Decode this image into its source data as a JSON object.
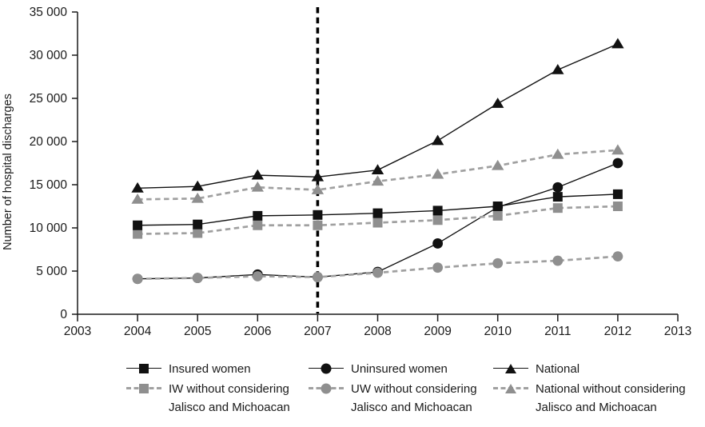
{
  "chart_data": {
    "type": "line",
    "title": "",
    "xlabel": "",
    "ylabel": "Number of hospital discharges",
    "x": [
      2004,
      2005,
      2006,
      2007,
      2008,
      2009,
      2010,
      2011,
      2012
    ],
    "xlim": [
      2003,
      2013
    ],
    "ylim": [
      0,
      35000
    ],
    "x_ticks": [
      2003,
      2004,
      2005,
      2006,
      2007,
      2008,
      2009,
      2010,
      2011,
      2012,
      2013
    ],
    "x_tick_labels": [
      "2003",
      "2004",
      "2005",
      "2006",
      "2007",
      "2008",
      "2009",
      "2010",
      "2011",
      "2012",
      "2013"
    ],
    "y_ticks": [
      0,
      5000,
      10000,
      15000,
      20000,
      25000,
      30000,
      35000
    ],
    "y_tick_labels": [
      "0",
      "5 000",
      "10 000",
      "15 000",
      "20 000",
      "25 000",
      "30 000",
      "35 000"
    ],
    "grid": false,
    "legend_position": "bottom",
    "reference_line": {
      "x": 2007,
      "orientation": "vertical",
      "style": "dashed",
      "color": "#000000"
    },
    "series": [
      {
        "name": "Insured women",
        "marker": "square",
        "line": "solid",
        "color": "#111111",
        "values": [
          10300,
          10400,
          11400,
          11500,
          11700,
          12000,
          12500,
          13600,
          13900
        ]
      },
      {
        "name": "IW without considering Jalisco and Michoacan",
        "marker": "square",
        "line": "dashed",
        "color": "#8f8f8f",
        "line_color": "#a0a0a0",
        "values": [
          9300,
          9400,
          10300,
          10300,
          10600,
          10900,
          11400,
          12300,
          12500
        ]
      },
      {
        "name": "Uninsured women",
        "marker": "circle",
        "line": "solid",
        "color": "#111111",
        "values": [
          4100,
          4200,
          4600,
          4300,
          4900,
          8200,
          12400,
          14700,
          17500
        ]
      },
      {
        "name": "UW without considering Jalisco and Michoacan",
        "marker": "circle",
        "line": "dashed",
        "color": "#8f8f8f",
        "line_color": "#a0a0a0",
        "values": [
          4100,
          4200,
          4400,
          4300,
          4800,
          5400,
          5900,
          6200,
          6700
        ]
      },
      {
        "name": "National",
        "marker": "triangle",
        "line": "solid",
        "color": "#111111",
        "values": [
          14600,
          14800,
          16100,
          15900,
          16700,
          20100,
          24400,
          28300,
          31300
        ]
      },
      {
        "name": "National without considering Jalisco and Michoacan",
        "marker": "triangle",
        "line": "dashed",
        "color": "#8f8f8f",
        "line_color": "#a0a0a0",
        "values": [
          13300,
          13400,
          14700,
          14400,
          15400,
          16200,
          17200,
          18500,
          19000
        ]
      }
    ]
  },
  "legend": {
    "columns": [
      {
        "marker": "square",
        "solid_label": "Insured women",
        "dashed_label": "IW without considering",
        "dashed_label2": "Jalisco and Michoacan"
      },
      {
        "marker": "circle",
        "solid_label": "Uninsured women",
        "dashed_label": "UW without considering",
        "dashed_label2": "Jalisco and Michoacan"
      },
      {
        "marker": "triangle",
        "solid_label": "National",
        "dashed_label": "National without considering",
        "dashed_label2": "Jalisco and Michoacan"
      }
    ]
  },
  "colors": {
    "black": "#111111",
    "gray_marker": "#8f8f8f",
    "gray_line": "#a0a0a0",
    "axis": "#1a1a1a",
    "text": "#1a1a1a"
  }
}
